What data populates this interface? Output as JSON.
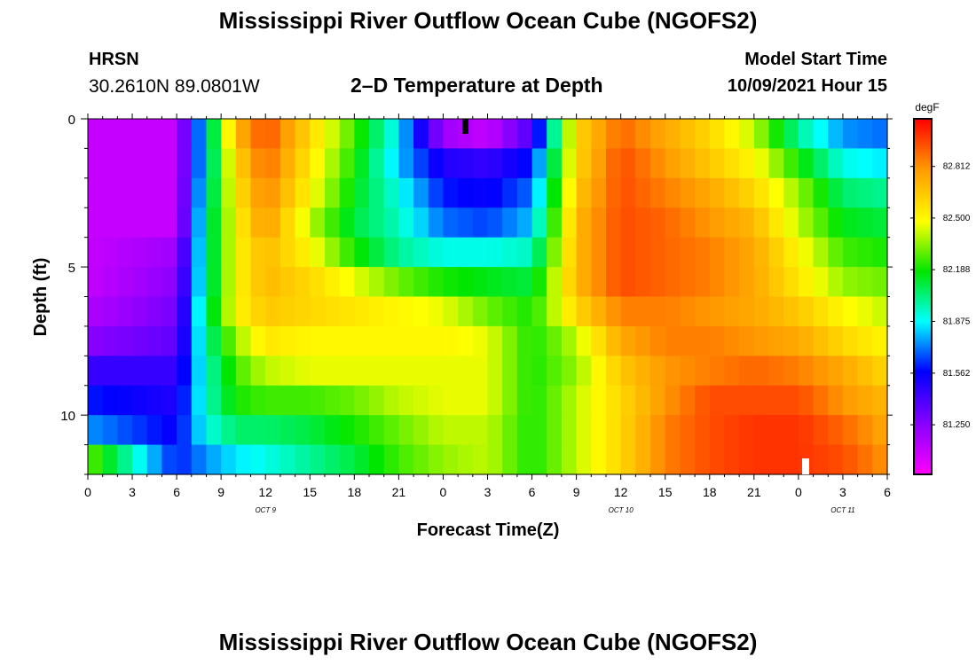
{
  "header": {
    "title": "Mississippi River Outflow Ocean Cube (NGOFS2)",
    "station": "HRSN",
    "coords": "30.2610N  89.0801W",
    "subtitle": "2–D Temperature at Depth",
    "model_start_label": "Model Start Time",
    "model_start_value": "10/09/2021 Hour 15"
  },
  "footer": {
    "title": "Mississippi River Outflow Ocean Cube (NGOFS2)"
  },
  "chart_data": {
    "type": "heatmap",
    "title": "2–D Temperature at Depth",
    "xlabel": "Forecast Time(Z)",
    "ylabel": "Depth (ft)",
    "x_tick_labels": [
      "0",
      "3",
      "6",
      "9",
      "12",
      "15",
      "18",
      "21",
      "0",
      "3",
      "6",
      "9",
      "12",
      "15",
      "18",
      "21",
      "0",
      "3",
      "6"
    ],
    "date_labels": [
      "OCT 9",
      "OCT 10",
      "OCT 11"
    ],
    "y_tick_labels": [
      "0",
      "5",
      "10"
    ],
    "xlim_hours": [
      0,
      54
    ],
    "ylim_ft": [
      0,
      12
    ],
    "colorbar": {
      "unit": "degF",
      "tick_labels": [
        "82.812",
        "82.500",
        "82.188",
        "81.875",
        "81.562",
        "81.250"
      ],
      "tick_values": [
        82.812,
        82.5,
        82.188,
        81.875,
        81.562,
        81.25
      ],
      "range": [
        80.95,
        83.1
      ]
    },
    "rows_depth_ft": [
      0.5,
      1.5,
      2.5,
      3.5,
      4.5,
      5.5,
      6.5,
      7.5,
      8.5,
      9.5,
      10.5,
      11.5
    ],
    "keyframes_hours": [
      0,
      6,
      8,
      10,
      12,
      15,
      18,
      21,
      24,
      27,
      30,
      33,
      36,
      39,
      42,
      45,
      48,
      51,
      54
    ],
    "temperature_degF": [
      [
        81.1,
        81.1,
        81.9,
        82.7,
        82.95,
        82.6,
        82.25,
        81.85,
        81.2,
        81.1,
        81.4,
        82.6,
        82.9,
        82.75,
        82.6,
        82.4,
        82.0,
        81.75,
        81.7
      ],
      [
        81.1,
        81.1,
        81.9,
        82.6,
        82.9,
        82.55,
        82.2,
        81.8,
        81.5,
        81.45,
        81.6,
        82.6,
        82.95,
        82.8,
        82.65,
        82.5,
        82.2,
        81.9,
        81.85
      ],
      [
        81.1,
        81.1,
        81.95,
        82.55,
        82.85,
        82.5,
        82.15,
        81.9,
        81.6,
        81.55,
        81.7,
        82.65,
        82.95,
        82.85,
        82.75,
        82.6,
        82.35,
        82.05,
        82.0
      ],
      [
        81.1,
        81.1,
        82.0,
        82.5,
        82.8,
        82.4,
        82.1,
        81.95,
        81.7,
        81.65,
        81.8,
        82.7,
        82.95,
        82.9,
        82.8,
        82.7,
        82.4,
        82.15,
        82.1
      ],
      [
        81.1,
        81.2,
        82.0,
        82.5,
        82.7,
        82.5,
        82.2,
        82.0,
        81.9,
        81.9,
        81.95,
        82.7,
        82.95,
        82.9,
        82.85,
        82.75,
        82.5,
        82.25,
        82.2
      ],
      [
        81.1,
        81.25,
        82.0,
        82.5,
        82.7,
        82.6,
        82.45,
        82.3,
        82.2,
        82.15,
        82.1,
        82.7,
        82.95,
        82.9,
        82.85,
        82.75,
        82.55,
        82.35,
        82.3
      ],
      [
        81.15,
        81.3,
        82.05,
        82.5,
        82.65,
        82.6,
        82.55,
        82.5,
        82.45,
        82.3,
        82.2,
        82.6,
        82.85,
        82.85,
        82.8,
        82.75,
        82.65,
        82.5,
        82.4
      ],
      [
        81.25,
        81.35,
        82.0,
        82.35,
        82.55,
        82.5,
        82.5,
        82.5,
        82.5,
        82.45,
        82.2,
        82.4,
        82.75,
        82.85,
        82.85,
        82.8,
        82.75,
        82.6,
        82.5
      ],
      [
        81.45,
        81.45,
        81.95,
        82.25,
        82.4,
        82.45,
        82.45,
        82.45,
        82.45,
        82.45,
        82.2,
        82.35,
        82.65,
        82.8,
        82.85,
        82.9,
        82.85,
        82.75,
        82.6
      ],
      [
        81.6,
        81.5,
        81.95,
        82.2,
        82.25,
        82.25,
        82.3,
        82.4,
        82.45,
        82.45,
        82.2,
        82.4,
        82.6,
        82.8,
        82.95,
        82.95,
        82.95,
        82.8,
        82.7
      ],
      [
        81.75,
        81.55,
        81.9,
        82.05,
        82.05,
        82.1,
        82.2,
        82.3,
        82.4,
        82.4,
        82.2,
        82.4,
        82.6,
        82.85,
        82.95,
        83.0,
        83.0,
        82.9,
        82.75
      ],
      [
        82.3,
        81.6,
        81.75,
        81.85,
        81.9,
        82.0,
        82.1,
        82.25,
        82.35,
        82.4,
        82.2,
        82.4,
        82.6,
        82.85,
        82.95,
        83.0,
        83.0,
        82.95,
        82.8
      ]
    ]
  }
}
